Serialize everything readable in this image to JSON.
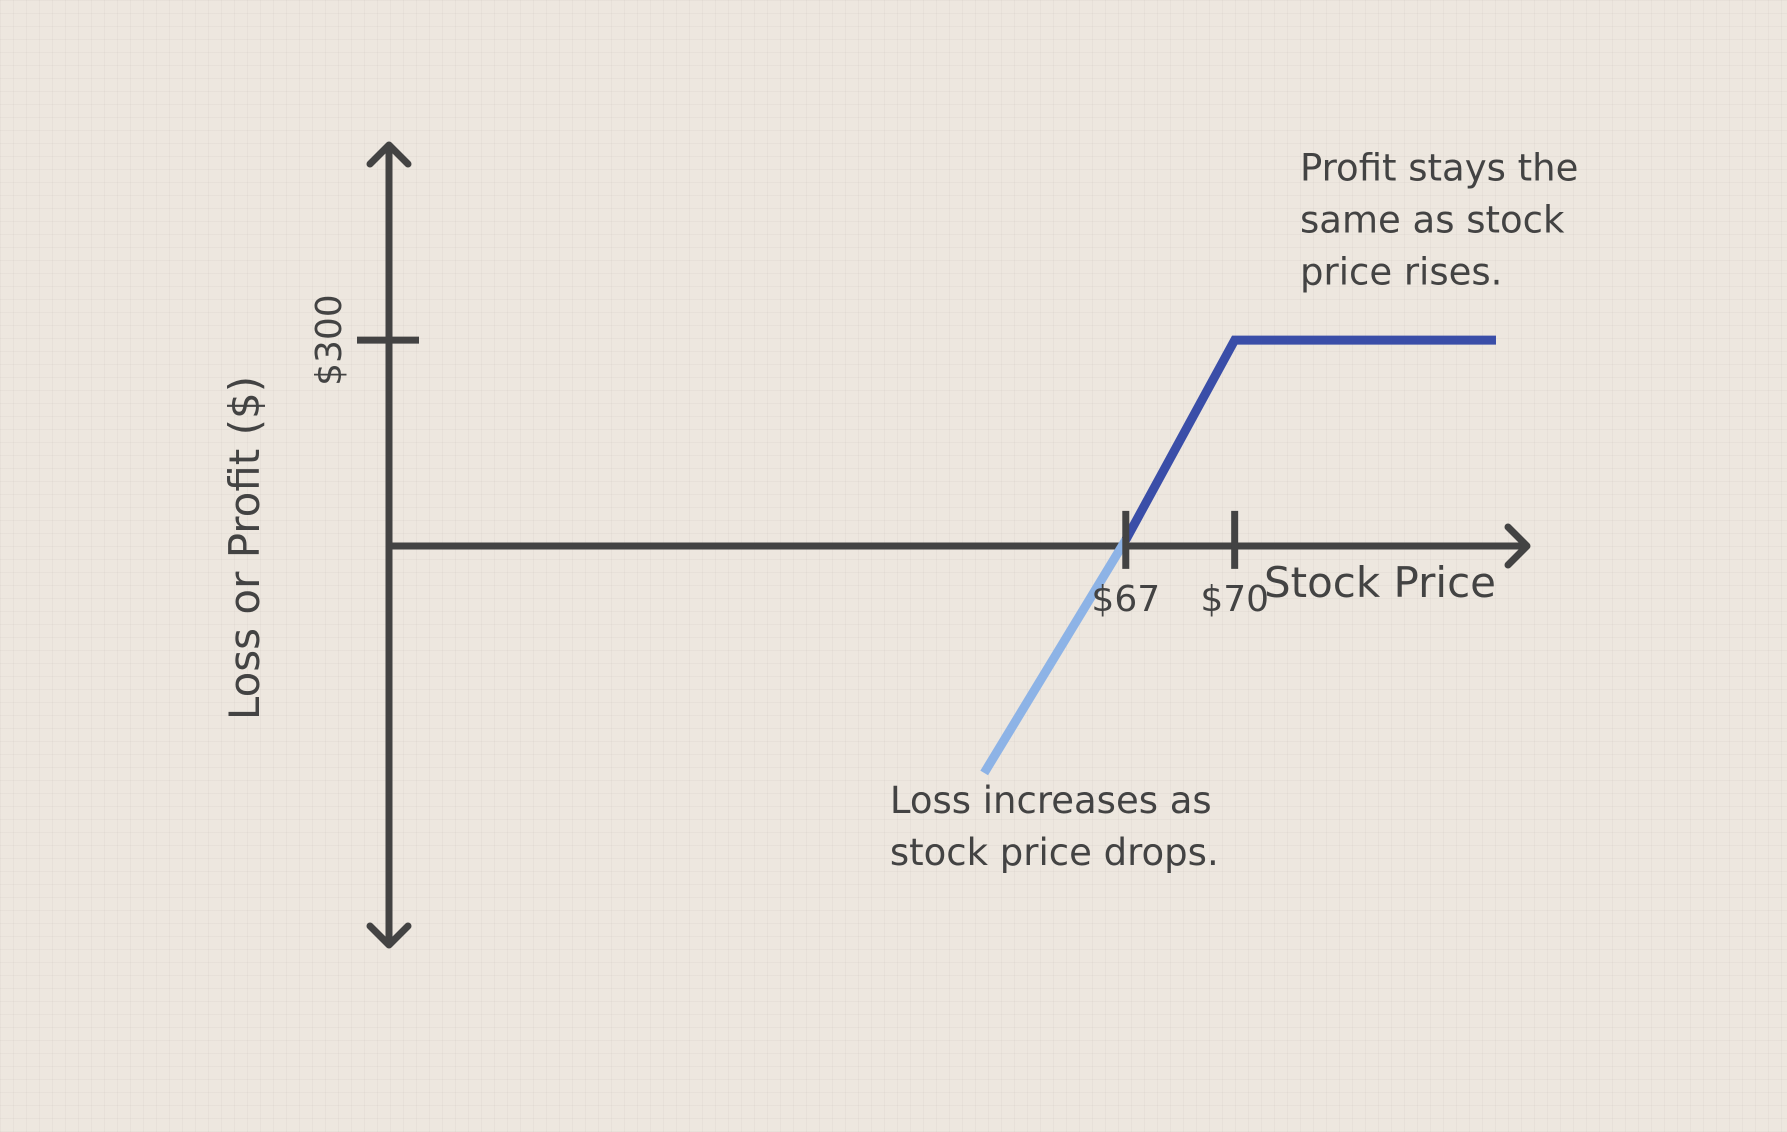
{
  "chart_data": {
    "type": "line",
    "title": "",
    "xlabel": "Stock Price",
    "ylabel": "Loss or Profit ($)",
    "xlim": [
      46.7,
      77.2
    ],
    "ylim": [
      -610,
      590
    ],
    "x_ticks": [
      {
        "value": 67,
        "label": "$67"
      },
      {
        "value": 70,
        "label": "$70"
      }
    ],
    "y_ticks": [
      {
        "value": 300,
        "label": "$300"
      }
    ],
    "grid": false,
    "legend": "none",
    "series": [
      {
        "color": "#8db3e6",
        "points": [
          {
            "x": 63.1,
            "y": -350
          },
          {
            "x": 67,
            "y": 0
          }
        ]
      },
      {
        "color": "#3a4ea8",
        "points": [
          {
            "x": 67,
            "y": 0
          },
          {
            "x": 70,
            "y": 300
          },
          {
            "x": 77.2,
            "y": 300
          }
        ]
      }
    ],
    "annotations": [
      {
        "lines": [
          "Profit stays the",
          "same as stock",
          "price rises."
        ],
        "anchor": {
          "x": 71.8,
          "y": 540
        }
      },
      {
        "lines": [
          "Loss increases as",
          "stock price drops."
        ],
        "anchor": {
          "x": 60.5,
          "y": -410
        }
      }
    ]
  }
}
